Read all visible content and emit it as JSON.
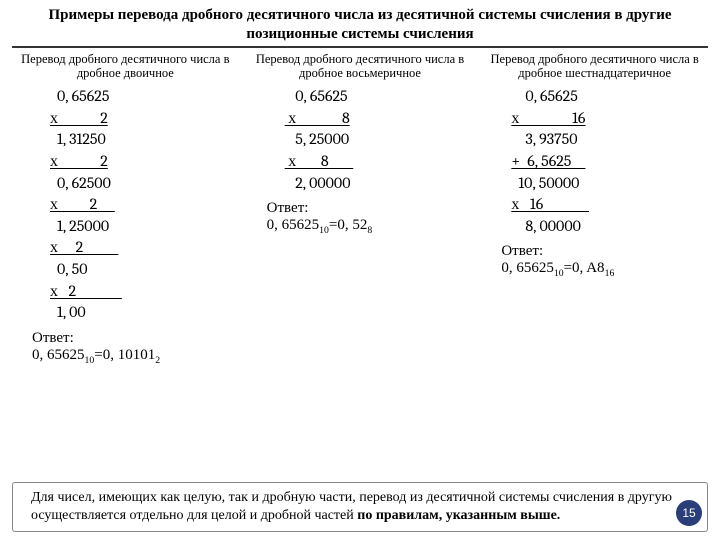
{
  "title": "Примеры перевода дробного десятичного числа из десятичной системы счисления в другие позиционные системы счисления",
  "col1": {
    "subtitle": "Перевод дробного десятичного числа в дробное двоичное",
    "lines": [
      {
        "t": "  0, 65625"
      },
      {
        "t": "х            2",
        "ul": true
      },
      {
        "t": "  1, 31250"
      },
      {
        "t": "х            2",
        "ul": true
      },
      {
        "t": "  0, 62500"
      },
      {
        "t": "х         2     ",
        "ul": true
      },
      {
        "t": "  1, 25000"
      },
      {
        "t": "х     2          ",
        "ul": true
      },
      {
        "t": "  0, 50"
      },
      {
        "t": "х   2             ",
        "ul": true
      },
      {
        "t": "  1, 00"
      }
    ],
    "ansLabel": "Ответ:",
    "ansPrefix": "0, 65625",
    "ansSub1": "10",
    "ansMid": "=0, 10101",
    "ansSub2": "2"
  },
  "col2": {
    "subtitle": "Перевод дробного десятичного числа в дробное восьмеричное",
    "lines": [
      {
        "t": "   0, 65625"
      },
      {
        "t": " х             8",
        "ul": true
      },
      {
        "t": "   5, 25000"
      },
      {
        "t": " х       8       ",
        "ul": true
      },
      {
        "t": "   2, 00000"
      }
    ],
    "ansLabel": "Ответ:",
    "ansPrefix": "0, 65625",
    "ansSub1": "10",
    "ansMid": "=0, 52",
    "ansSub2": "8"
  },
  "col3": {
    "subtitle": "Перевод дробного десятичного числа в дробное шестнадцатеричное",
    "lines": [
      {
        "t": "    0, 65625"
      },
      {
        "t": "х               16",
        "ul": true
      },
      {
        "t": "    3, 93750"
      },
      {
        "t": "+  6, 5625    ",
        "ul": true
      },
      {
        "t": "  10, 50000"
      },
      {
        "t": "х   16             ",
        "ul": true
      },
      {
        "t": "    8, 00000"
      }
    ],
    "ansLabel": "Ответ:",
    "ansPrefix": "0, 65625",
    "ansSub1": "10",
    "ansMid": "=0, A8",
    "ansSub2": "16"
  },
  "note": {
    "pre": "Для чисел, имеющих как целую, так и дробную части, перевод из десятичной системы счисления в другую осуществляется отдельно для целой и дробной частей ",
    "hl": "по правилам, указанным выше."
  },
  "pageNum": "15"
}
